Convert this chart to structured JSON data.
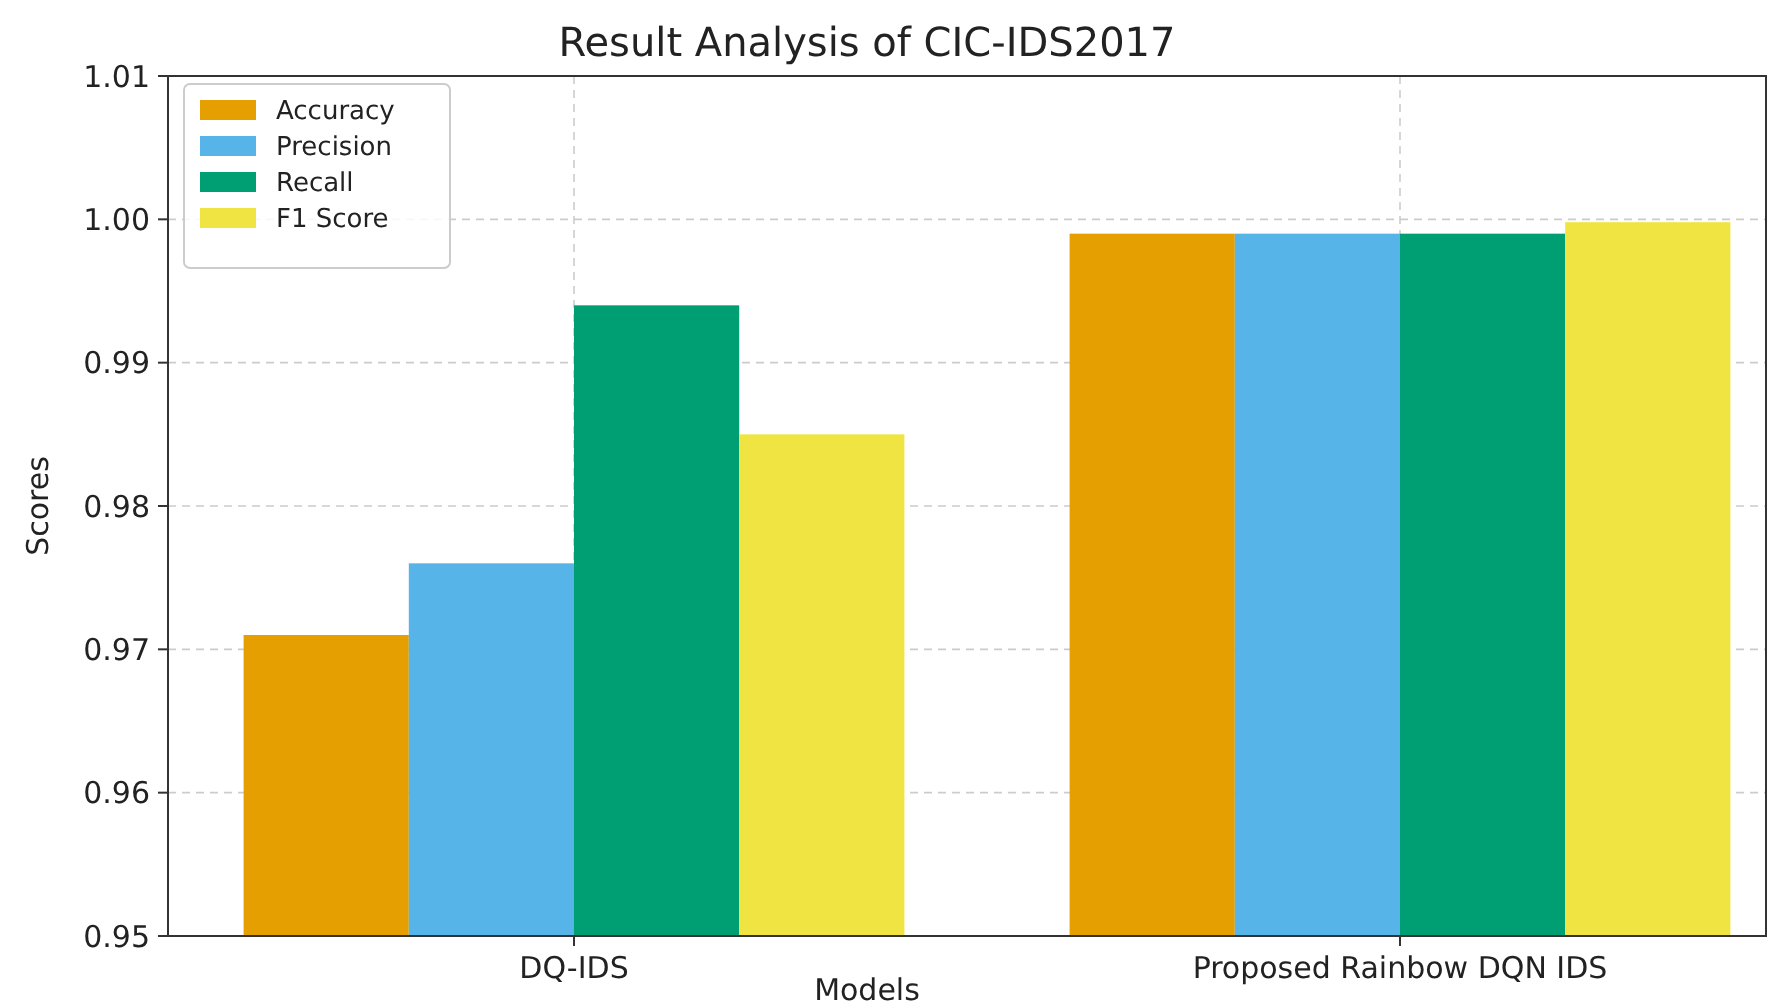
{
  "chart_data": {
    "type": "bar",
    "title": "Result Analysis of CIC-IDS2017",
    "xlabel": "Models",
    "ylabel": "Scores",
    "categories": [
      "DQ-IDS",
      "Proposed Rainbow DQN IDS"
    ],
    "series": [
      {
        "name": "Accuracy",
        "color": "#e69f00",
        "values": [
          0.971,
          0.999
        ]
      },
      {
        "name": "Precision",
        "color": "#56b4e9",
        "values": [
          0.976,
          0.999
        ]
      },
      {
        "name": "Recall",
        "color": "#009e73",
        "values": [
          0.994,
          0.999
        ]
      },
      {
        "name": "F1 Score",
        "color": "#f0e442",
        "values": [
          0.985,
          0.9998
        ]
      }
    ],
    "ylim": [
      0.95,
      1.01
    ],
    "yticks": [
      {
        "value": 0.95,
        "label": "0.95"
      },
      {
        "value": 0.96,
        "label": "0.96"
      },
      {
        "value": 0.97,
        "label": "0.97"
      },
      {
        "value": 0.98,
        "label": "0.98"
      },
      {
        "value": 0.99,
        "label": "0.99"
      },
      {
        "value": 1.0,
        "label": "1.00"
      },
      {
        "value": 1.01,
        "label": "1.01"
      }
    ],
    "grid": true,
    "legend": "top left"
  }
}
